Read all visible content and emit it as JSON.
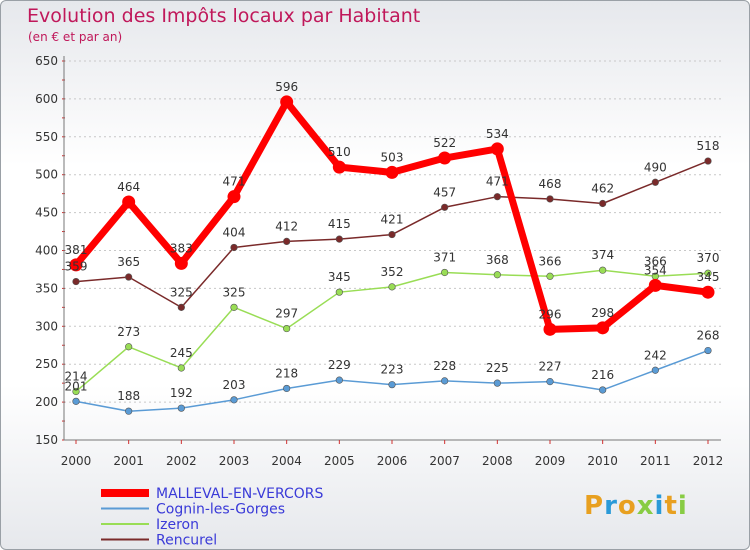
{
  "chart_data": {
    "type": "line",
    "title": "Evolution des Impôts locaux par Habitant",
    "subtitle": "(en € et par an)",
    "xlabel": "",
    "ylabel": "",
    "ylim": [
      150,
      650
    ],
    "yticks": [
      150,
      200,
      250,
      300,
      350,
      400,
      450,
      500,
      550,
      600,
      650
    ],
    "x": [
      "2000",
      "2001",
      "2002",
      "2003",
      "2004",
      "2005",
      "2006",
      "2007",
      "2008",
      "2009",
      "2010",
      "2011",
      "2012"
    ],
    "grid": "horizontal",
    "legend": "bottom",
    "series": [
      {
        "name": "MALLEVAL-EN-VERCORS",
        "color": "#ff0000",
        "width": 7,
        "values": [
          381,
          464,
          383,
          471,
          596,
          510,
          503,
          522,
          534,
          296,
          298,
          354,
          345
        ]
      },
      {
        "name": "Cognin-les-Gorges",
        "color": "#5a9bd5",
        "width": 1.5,
        "values": [
          201,
          188,
          192,
          203,
          218,
          229,
          223,
          228,
          225,
          227,
          216,
          242,
          268
        ]
      },
      {
        "name": "Izeron",
        "color": "#99dd55",
        "width": 1.5,
        "values": [
          214,
          273,
          245,
          325,
          297,
          345,
          352,
          371,
          368,
          366,
          374,
          366,
          370
        ]
      },
      {
        "name": "Rencurel",
        "color": "#7a2a2a",
        "width": 1.5,
        "values": [
          359,
          365,
          325,
          404,
          412,
          415,
          421,
          457,
          471,
          468,
          462,
          490,
          518
        ]
      }
    ]
  },
  "logo": {
    "text": "Proxiti"
  }
}
